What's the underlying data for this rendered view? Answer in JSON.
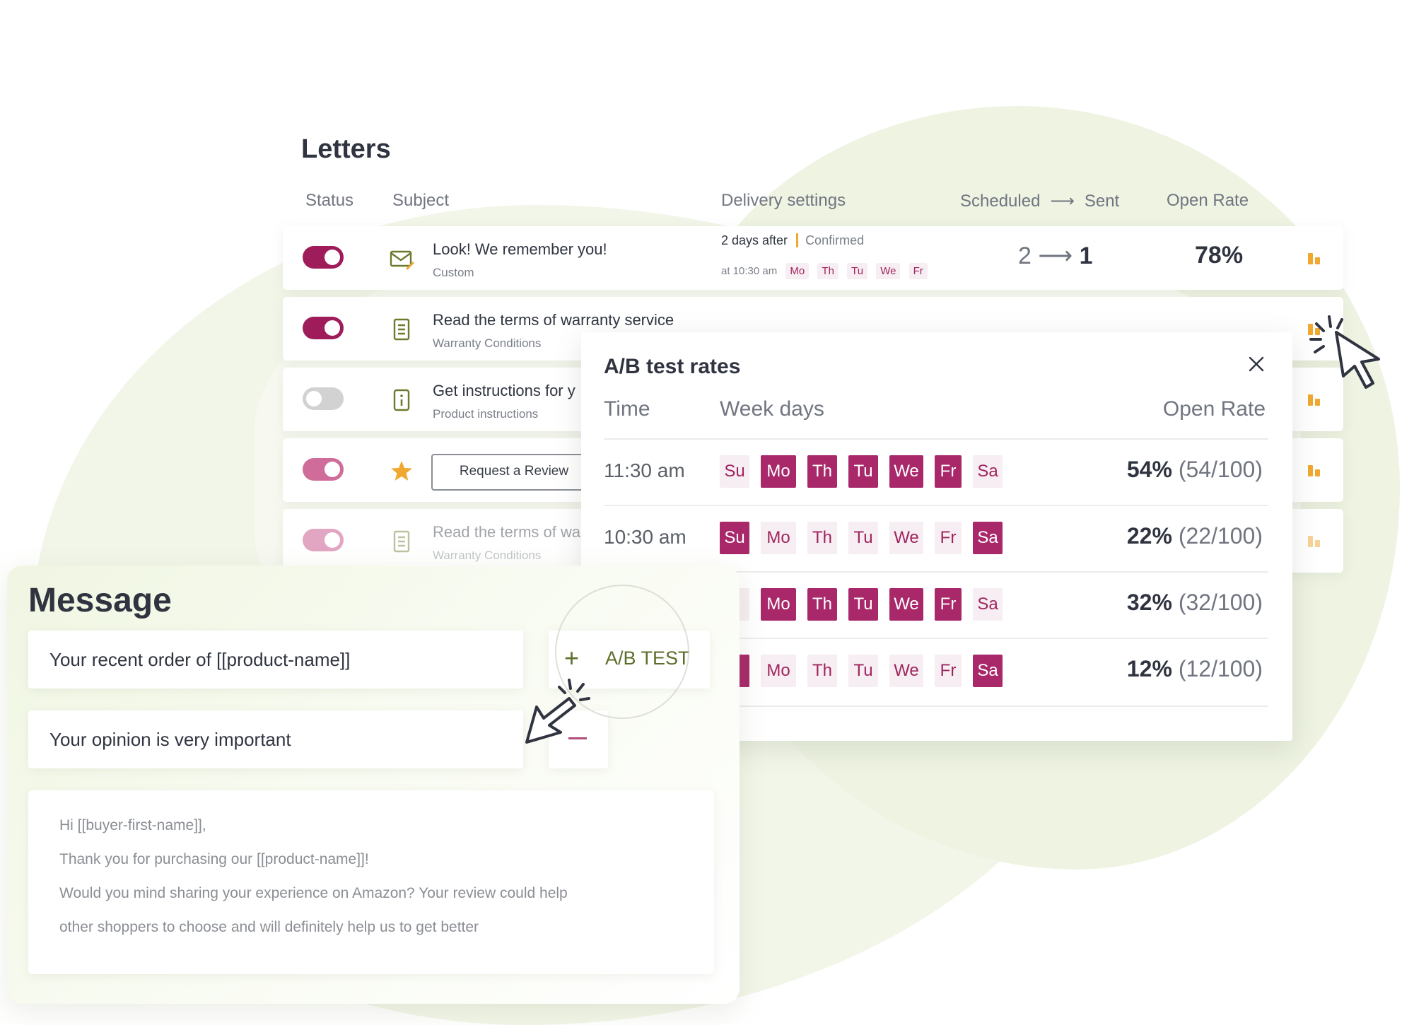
{
  "letters": {
    "title": "Letters",
    "columns": {
      "status": "Status",
      "subject": "Subject",
      "delivery": "Delivery settings",
      "scheduled": "Scheduled",
      "sent": "Sent",
      "open_rate": "Open Rate"
    },
    "rows": [
      {
        "subject": "Look! We remember you!",
        "sub": "Custom",
        "toggle": "on",
        "icon": "envelope-edit-icon",
        "delivery_main": "2 days after",
        "delivery_status": "Confirmed",
        "delivery_time": "at 10:30 am",
        "delivery_days": [
          "Mo",
          "Th",
          "Tu",
          "We",
          "Fr"
        ],
        "scheduled": "2",
        "sent": "1",
        "open_rate": "78%"
      },
      {
        "subject": "Read the terms of warranty service",
        "sub": "Warranty Conditions",
        "toggle": "on",
        "icon": "document-icon"
      },
      {
        "subject": "Get instructions for y",
        "sub": "Product instructions",
        "toggle": "off",
        "icon": "info-icon"
      },
      {
        "button": "Request a Review",
        "toggle": "on",
        "icon": "star-icon"
      },
      {
        "subject": "Read the terms of wa",
        "sub": "Warranty Conditions",
        "toggle": "on",
        "icon": "document-icon"
      }
    ]
  },
  "ab_test": {
    "title": "A/B test rates",
    "headers": {
      "time": "Time",
      "days": "Week days",
      "rate": "Open Rate"
    },
    "rows": [
      {
        "time": "11:30 am",
        "days": [
          "Su",
          "Mo",
          "Th",
          "Tu",
          "We",
          "Fr",
          "Sa"
        ],
        "active": [
          false,
          true,
          true,
          true,
          true,
          true,
          false
        ],
        "rate": "54%",
        "ratio": "(54/100)"
      },
      {
        "time": "10:30 am",
        "days": [
          "Su",
          "Mo",
          "Th",
          "Tu",
          "We",
          "Fr",
          "Sa"
        ],
        "active": [
          true,
          false,
          false,
          false,
          false,
          false,
          true
        ],
        "rate": "22%",
        "ratio": "(22/100)"
      },
      {
        "time": "",
        "days": [
          "u",
          "Mo",
          "Th",
          "Tu",
          "We",
          "Fr",
          "Sa"
        ],
        "active": [
          false,
          true,
          true,
          true,
          true,
          true,
          false
        ],
        "rate": "32%",
        "ratio": "(32/100)"
      },
      {
        "time": "",
        "days": [
          "u",
          "Mo",
          "Th",
          "Tu",
          "We",
          "Fr",
          "Sa"
        ],
        "active": [
          true,
          false,
          false,
          false,
          false,
          false,
          true
        ],
        "rate": "12%",
        "ratio": "(12/100)"
      }
    ]
  },
  "message": {
    "title": "Message",
    "subject_1": "Your recent order of [[product-name]]",
    "subject_2": "Your opinion is very important",
    "ab_button": "A/B TEST",
    "body_lines": [
      "Hi [[buyer-first-name]],",
      "Thank you for purchasing our [[product-name]]!",
      "Would you mind sharing your experience on Amazon? Your review could help",
      "other shoppers to choose and will definitely help us to get better"
    ]
  },
  "colors": {
    "accent": "#a8286a",
    "toggle_on": "#9e1c5a",
    "bar_icon": "#f0a830",
    "ab_green": "#5c6e2a",
    "background_blob": "#f1f5e7"
  }
}
